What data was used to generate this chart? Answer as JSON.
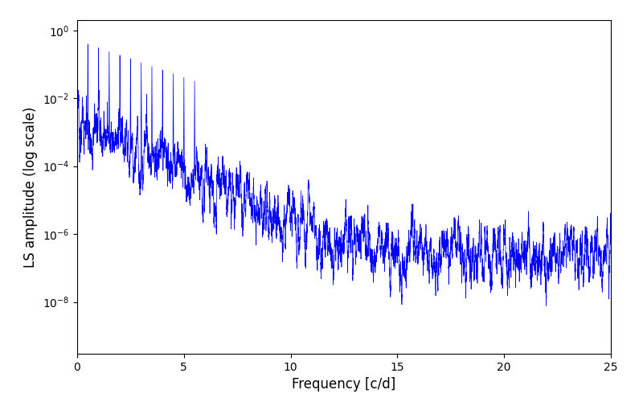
{
  "title": "",
  "xlabel": "Frequency [c/d]",
  "ylabel": "LS amplitude (log scale)",
  "xlim": [
    0,
    25
  ],
  "ylim_low": 3e-10,
  "ylim_high": 2.0,
  "line_color": "#0000ff",
  "line_width": 0.5,
  "figsize": [
    8.0,
    5.0
  ],
  "dpi": 100,
  "yscale": "log",
  "freq_max": 25.0,
  "n_points": 10000,
  "seed": 12345
}
